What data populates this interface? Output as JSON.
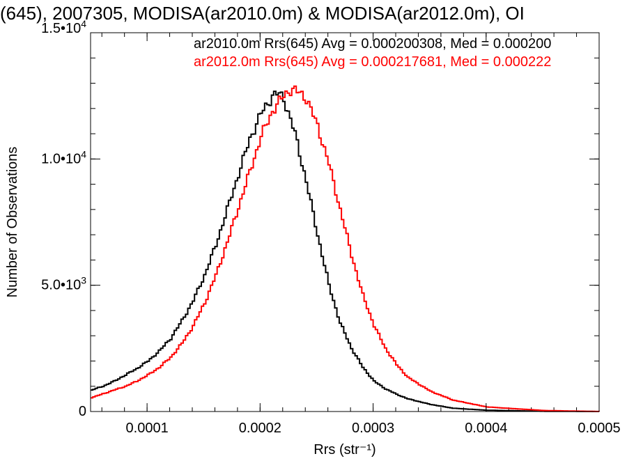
{
  "chart_data": {
    "type": "line",
    "title": "(645), 2007305, MODISA(ar2010.0m) & MODISA(ar2012.0m), OI",
    "xlabel": "Rrs (str⁻¹)",
    "ylabel": "Number of Observations",
    "xlim": [
      5e-05,
      0.0005
    ],
    "ylim": [
      0,
      15000
    ],
    "x_ticks": [
      {
        "value": 0.0001,
        "label": "0.0001"
      },
      {
        "value": 0.0002,
        "label": "0.0002"
      },
      {
        "value": 0.0003,
        "label": "0.0003"
      },
      {
        "value": 0.0004,
        "label": "0.0004"
      },
      {
        "value": 0.0005,
        "label": "0.0005"
      }
    ],
    "y_ticks": [
      {
        "value": 0,
        "mantissa": "0",
        "exp": ""
      },
      {
        "value": 5000,
        "mantissa": "5.0•10",
        "exp": "3"
      },
      {
        "value": 10000,
        "mantissa": "1.0•10",
        "exp": "4"
      },
      {
        "value": 15000,
        "mantissa": "1.5•10",
        "exp": "4"
      }
    ],
    "x_minor_step": 2e-05,
    "y_minor_step": 1000,
    "legend_position": "top-right",
    "series": [
      {
        "name": "ar2010.0m Rrs(645) Avg = 0.000200308, Med = 0.000200",
        "color": "#000000",
        "x": [
          5e-05,
          6e-05,
          7e-05,
          8e-05,
          9e-05,
          0.0001,
          0.00011,
          0.00012,
          0.00013,
          0.00014,
          0.00015,
          0.00016,
          0.00017,
          0.00018,
          0.00019,
          0.0002,
          0.00021,
          0.000215,
          0.00022,
          0.00023,
          0.00024,
          0.00025,
          0.00026,
          0.00027,
          0.00028,
          0.00029,
          0.0003,
          0.00031,
          0.00032,
          0.00033,
          0.00035,
          0.00037,
          0.0004,
          0.00045,
          0.0005
        ],
        "values": [
          850,
          1000,
          1200,
          1450,
          1700,
          2000,
          2400,
          2900,
          3600,
          4400,
          5400,
          6600,
          8000,
          9400,
          10800,
          11800,
          12500,
          12600,
          12400,
          11000,
          9100,
          7000,
          5000,
          3500,
          2500,
          1750,
          1200,
          900,
          680,
          500,
          280,
          130,
          50,
          10,
          0
        ]
      },
      {
        "name": "ar2012.0m Rrs(645) Avg = 0.000217681, Med = 0.000222",
        "color": "#ff0000",
        "x": [
          5e-05,
          6e-05,
          7e-05,
          8e-05,
          9e-05,
          0.0001,
          0.00011,
          0.00012,
          0.00013,
          0.00014,
          0.00015,
          0.00016,
          0.00017,
          0.00018,
          0.00019,
          0.0002,
          0.00021,
          0.00022,
          0.000225,
          0.00023,
          0.000235,
          0.00024,
          0.00025,
          0.00026,
          0.00027,
          0.00028,
          0.00029,
          0.0003,
          0.00031,
          0.00032,
          0.00033,
          0.00035,
          0.00037,
          0.0004,
          0.00045,
          0.0005
        ],
        "values": [
          550,
          700,
          850,
          1000,
          1200,
          1450,
          1750,
          2150,
          2700,
          3400,
          4300,
          5400,
          6700,
          8100,
          9500,
          10900,
          11900,
          12500,
          12750,
          12700,
          12600,
          12400,
          11300,
          9800,
          8000,
          6200,
          4600,
          3400,
          2500,
          1850,
          1350,
          800,
          450,
          180,
          40,
          0
        ]
      }
    ]
  }
}
